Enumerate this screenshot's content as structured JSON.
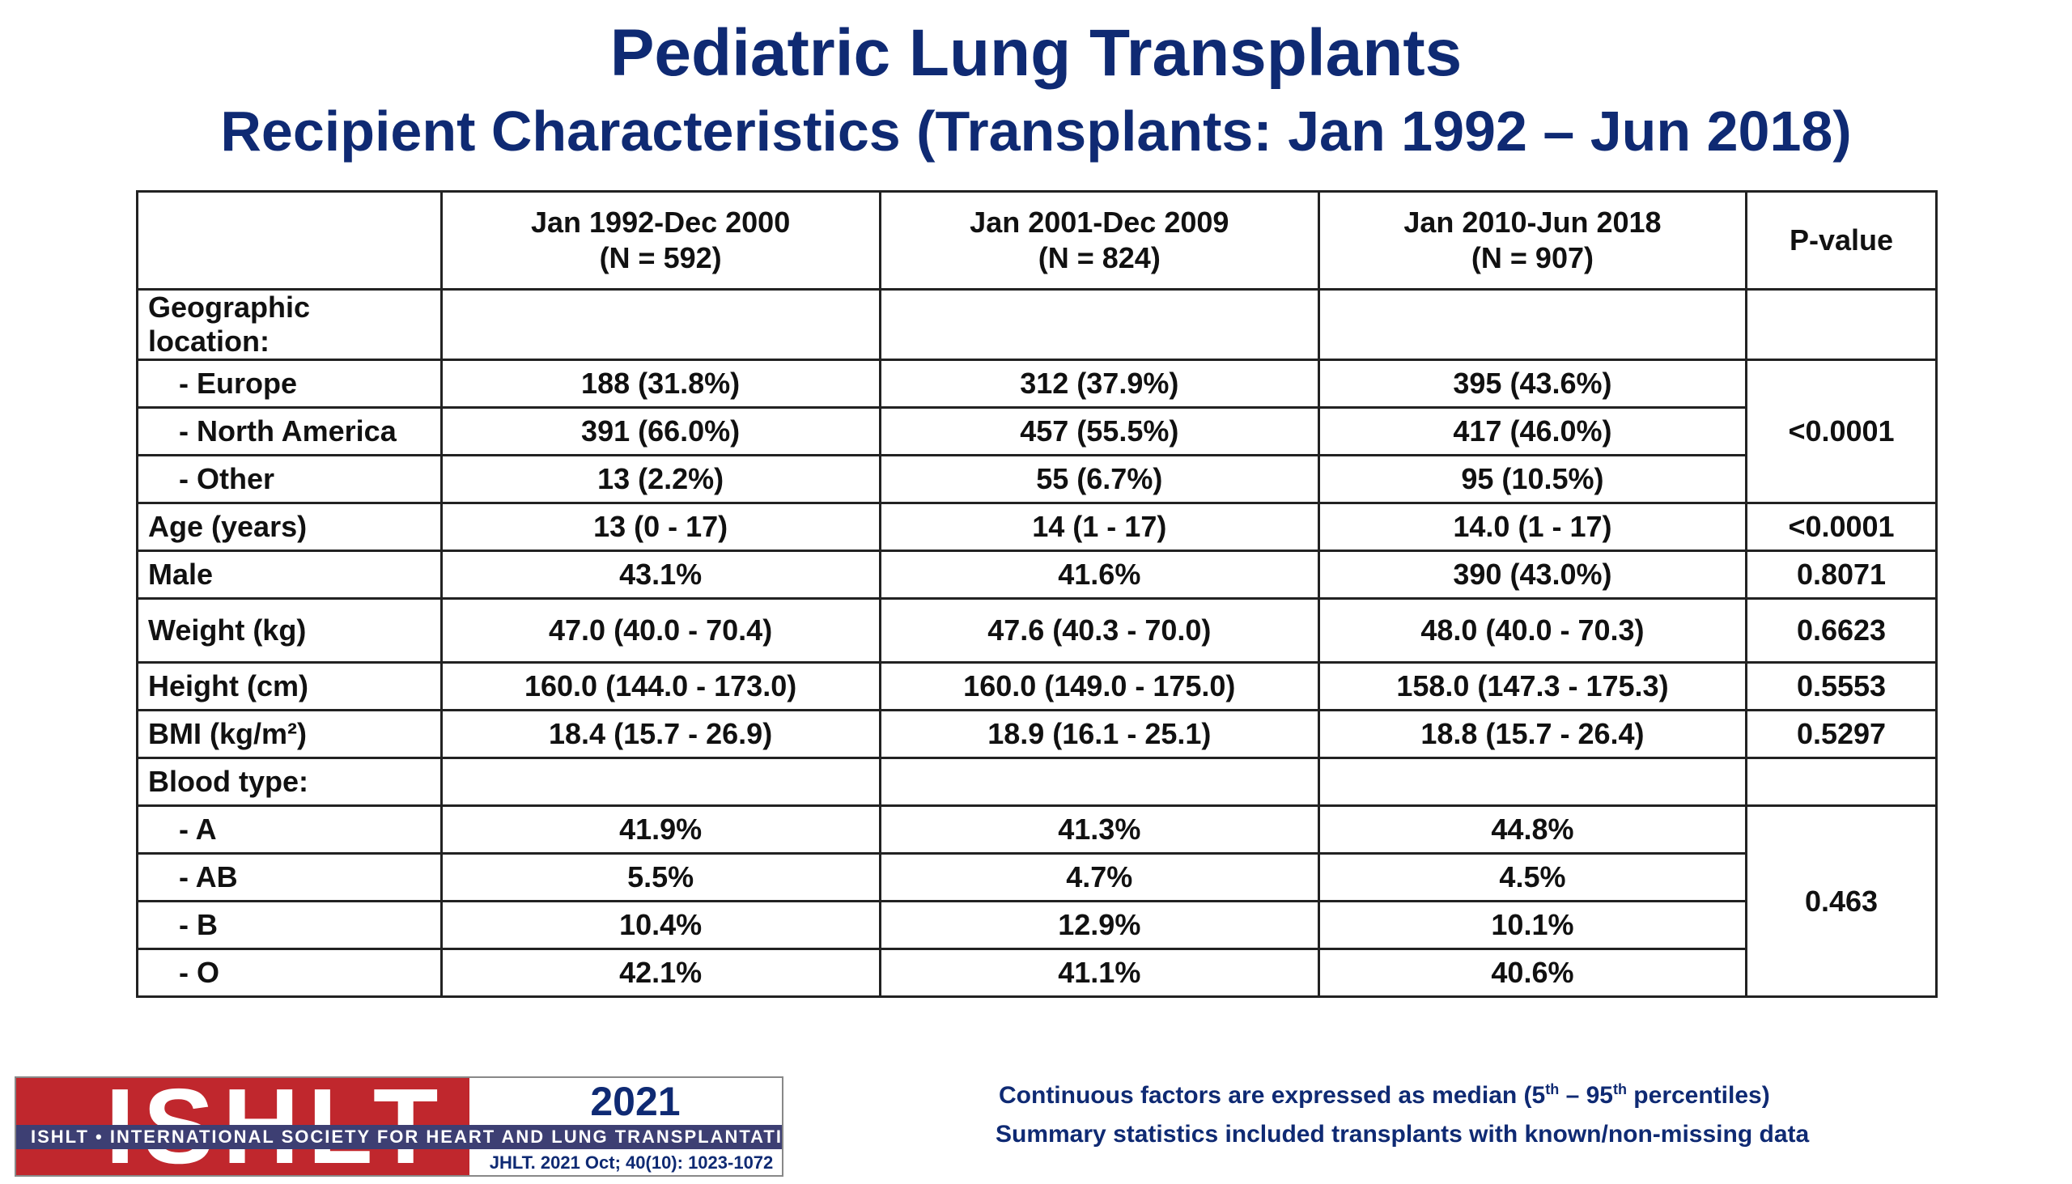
{
  "header": {
    "title": "Pediatric Lung Transplants",
    "subtitle": "Recipient Characteristics (Transplants: Jan 1992 – Jun 2018)"
  },
  "table": {
    "columns": [
      {
        "period": "Jan 1992-Dec 2000",
        "n": "(N = 592)"
      },
      {
        "period": "Jan 2001-Dec 2009",
        "n": "(N = 824)"
      },
      {
        "period": "Jan 2010-Jun 2018",
        "n": "(N = 907)"
      }
    ],
    "pvalue_header": "P-value",
    "geo": {
      "label": "Geographic location:",
      "rows": [
        {
          "label": "- Europe",
          "values": [
            "188 (31.8%)",
            "312 (37.9%)",
            "395 (43.6%)"
          ]
        },
        {
          "label": "- North America",
          "values": [
            "391 (66.0%)",
            "457 (55.5%)",
            "417 (46.0%)"
          ]
        },
        {
          "label": "- Other",
          "values": [
            "13 (2.2%)",
            "55 (6.7%)",
            "95 (10.5%)"
          ]
        }
      ],
      "pvalue": "<0.0001"
    },
    "age": {
      "label": "Age (years)",
      "values": [
        "13 (0 - 17)",
        "14 (1 - 17)",
        "14.0 (1 - 17)"
      ],
      "pvalue": "<0.0001"
    },
    "male": {
      "label": "Male",
      "values": [
        "43.1%",
        "41.6%",
        "390 (43.0%)"
      ],
      "pvalue": "0.8071"
    },
    "weight": {
      "label": "Weight (kg)",
      "values": [
        "47.0 (40.0 - 70.4)",
        "47.6 (40.3 - 70.0)",
        "48.0 (40.0 - 70.3)"
      ],
      "pvalue": "0.6623"
    },
    "height": {
      "label": "Height (cm)",
      "values": [
        "160.0 (144.0 - 173.0)",
        "160.0 (149.0 - 175.0)",
        "158.0 (147.3 - 175.3)"
      ],
      "pvalue": "0.5553"
    },
    "bmi": {
      "label": "BMI (kg/m²)",
      "values": [
        "18.4 (15.7 - 26.9)",
        "18.9 (16.1 - 25.1)",
        "18.8 (15.7 - 26.4)"
      ],
      "pvalue": "0.5297"
    },
    "blood": {
      "label": "Blood type:",
      "rows": [
        {
          "label": "- A",
          "values": [
            "41.9%",
            "41.3%",
            "44.8%"
          ]
        },
        {
          "label": "- AB",
          "values": [
            "5.5%",
            "4.7%",
            "4.5%"
          ]
        },
        {
          "label": "- B",
          "values": [
            "10.4%",
            "12.9%",
            "10.1%"
          ]
        },
        {
          "label": "- O",
          "values": [
            "42.1%",
            "41.1%",
            "40.6%"
          ]
        }
      ],
      "pvalue": "0.463"
    }
  },
  "logo": {
    "letters": "ISHLT",
    "year": "2021",
    "band": "ISHLT • INTERNATIONAL SOCIETY FOR HEART AND LUNG TRANSPLANTATION",
    "citation": "JHLT. 2021 Oct; 40(10): 1023-1072"
  },
  "footnotes": {
    "line1_a": "Continuous factors are expressed as median (5",
    "line1_sup1": "th",
    "line1_b": " – 95",
    "line1_sup2": "th",
    "line1_c": " percentiles)",
    "line2": "Summary statistics included transplants with known/non-missing data"
  }
}
